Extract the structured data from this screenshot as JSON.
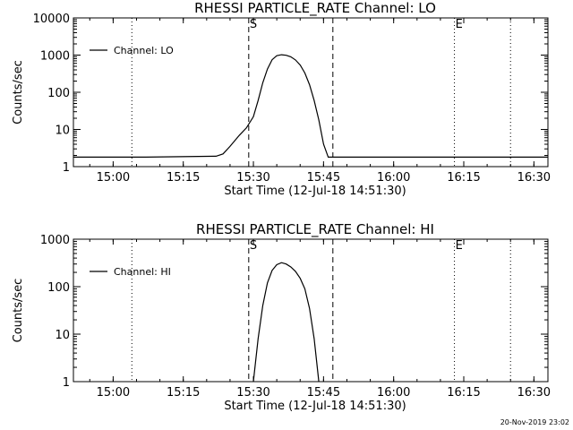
{
  "footer": {
    "timestamp": "20-Nov-2019 23:02"
  },
  "chart_data": [
    {
      "type": "line",
      "title": "RHESSI PARTICLE_RATE Channel: LO",
      "xlabel": "Start Time (12-Jul-18 14:51:30)",
      "ylabel": "Counts/sec",
      "y_scale": "log",
      "ylim": [
        1,
        10000
      ],
      "xlim": [
        "14:51:30",
        "16:33:00"
      ],
      "x_ticks": [
        "15:00",
        "15:15",
        "15:30",
        "15:45",
        "16:00",
        "16:15",
        "16:30"
      ],
      "y_ticks": [
        "1",
        "10",
        "100",
        "1000",
        "10000"
      ],
      "legend": {
        "position": "top-left",
        "label": "Channel: LO"
      },
      "markers": [
        {
          "label": "S",
          "time": "15:29:00",
          "style": "dashed",
          "show_label": true
        },
        {
          "label": "",
          "time": "15:47:00",
          "style": "dashed",
          "show_label": false
        },
        {
          "label": "",
          "time": "15:04:00",
          "style": "dotted",
          "show_label": false
        },
        {
          "label": "E",
          "time": "16:13:00",
          "style": "dotted",
          "show_label": true
        },
        {
          "label": "",
          "time": "16:25:00",
          "style": "dotted",
          "show_label": false
        }
      ],
      "series": [
        {
          "name": "Channel: LO",
          "points": [
            [
              "14:51:30",
              1.8
            ],
            [
              "15:07:00",
              1.8
            ],
            [
              "15:22:00",
              1.9
            ],
            [
              "15:23:30",
              2.2
            ],
            [
              "15:25:00",
              3.5
            ],
            [
              "15:27:00",
              7
            ],
            [
              "15:28:30",
              11
            ],
            [
              "15:30:00",
              22
            ],
            [
              "15:31:00",
              60
            ],
            [
              "15:32:00",
              180
            ],
            [
              "15:33:00",
              420
            ],
            [
              "15:34:00",
              750
            ],
            [
              "15:35:00",
              960
            ],
            [
              "15:36:00",
              1020
            ],
            [
              "15:37:00",
              990
            ],
            [
              "15:38:00",
              900
            ],
            [
              "15:39:00",
              740
            ],
            [
              "15:40:00",
              540
            ],
            [
              "15:41:00",
              330
            ],
            [
              "15:42:00",
              160
            ],
            [
              "15:43:00",
              60
            ],
            [
              "15:44:00",
              18
            ],
            [
              "15:45:00",
              4
            ],
            [
              "15:46:00",
              1.8
            ],
            [
              "16:33:00",
              1.8
            ]
          ]
        }
      ]
    },
    {
      "type": "line",
      "title": "RHESSI PARTICLE_RATE Channel: HI",
      "xlabel": "Start Time (12-Jul-18 14:51:30)",
      "ylabel": "Counts/sec",
      "y_scale": "log",
      "ylim": [
        1,
        1000
      ],
      "xlim": [
        "14:51:30",
        "16:33:00"
      ],
      "x_ticks": [
        "15:00",
        "15:15",
        "15:30",
        "15:45",
        "16:00",
        "16:15",
        "16:30"
      ],
      "y_ticks": [
        "1",
        "10",
        "100",
        "1000"
      ],
      "legend": {
        "position": "top-left",
        "label": "Channel: HI"
      },
      "markers": [
        {
          "label": "S",
          "time": "15:29:00",
          "style": "dashed",
          "show_label": true
        },
        {
          "label": "",
          "time": "15:47:00",
          "style": "dashed",
          "show_label": false
        },
        {
          "label": "",
          "time": "15:04:00",
          "style": "dotted",
          "show_label": false
        },
        {
          "label": "E",
          "time": "16:13:00",
          "style": "dotted",
          "show_label": true
        },
        {
          "label": "",
          "time": "16:25:00",
          "style": "dotted",
          "show_label": false
        }
      ],
      "series": [
        {
          "name": "Channel: HI",
          "points": [
            [
              "15:30:00",
              1
            ],
            [
              "15:31:00",
              8
            ],
            [
              "15:32:00",
              40
            ],
            [
              "15:33:00",
              120
            ],
            [
              "15:34:00",
              220
            ],
            [
              "15:35:00",
              290
            ],
            [
              "15:36:00",
              320
            ],
            [
              "15:37:00",
              300
            ],
            [
              "15:38:00",
              260
            ],
            [
              "15:39:00",
              210
            ],
            [
              "15:40:00",
              150
            ],
            [
              "15:41:00",
              90
            ],
            [
              "15:42:00",
              35
            ],
            [
              "15:43:00",
              8
            ],
            [
              "15:44:00",
              1
            ]
          ]
        }
      ]
    }
  ]
}
